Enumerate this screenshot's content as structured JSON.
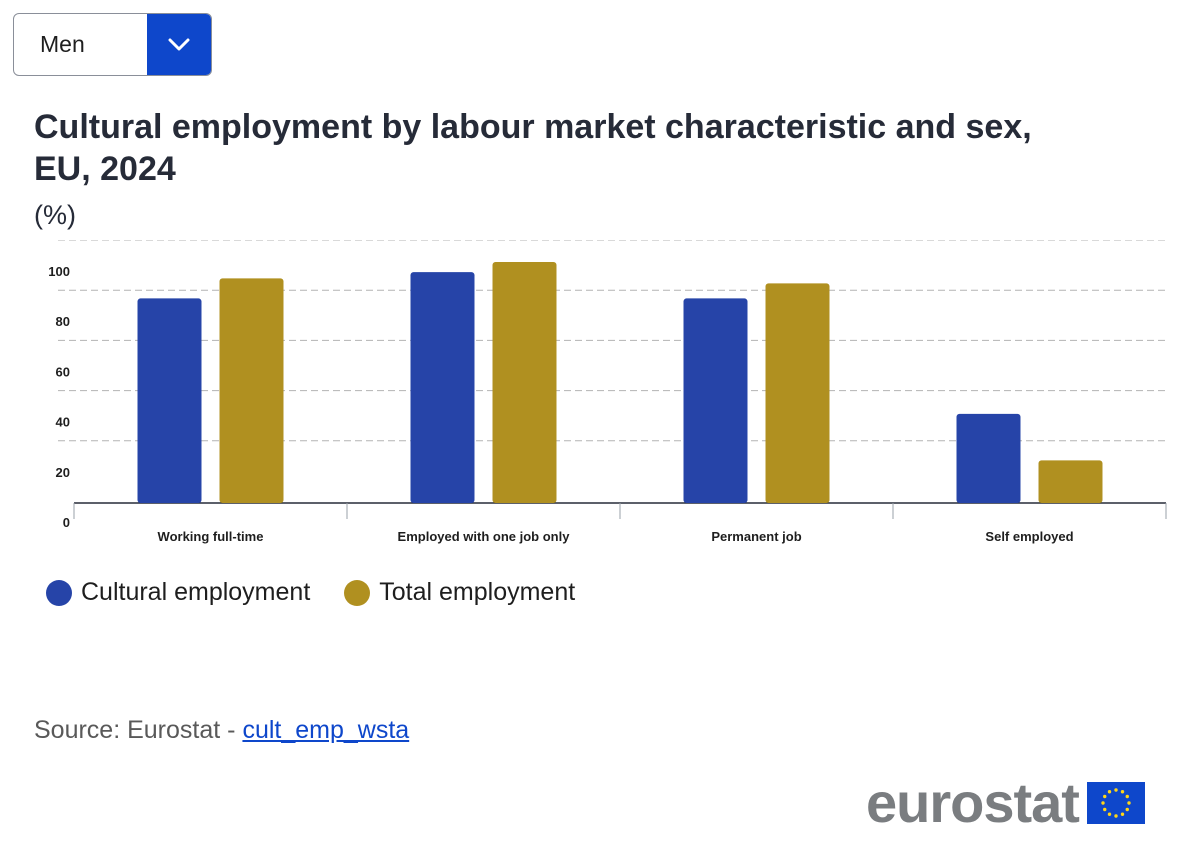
{
  "filter": {
    "selected": "Men"
  },
  "colors": {
    "cultural": "#2644a8",
    "total": "#b09020",
    "accent": "#0e47cb"
  },
  "source": {
    "prefix": "Source: Eurostat - ",
    "link_text": "cult_emp_wsta"
  },
  "logo": {
    "text": "eurostat",
    "icon": "eu-flag-icon"
  },
  "chart_data": {
    "type": "bar",
    "title": "Cultural employment by labour market characteristic and sex, EU, 2024",
    "unit": "(%)",
    "categories": [
      "Working full-time",
      "Employed with one job only",
      "Permanent job",
      "Self employed"
    ],
    "series": [
      {
        "name": "Cultural employment",
        "values": [
          81.5,
          92.0,
          81.5,
          35.5
        ]
      },
      {
        "name": "Total employment",
        "values": [
          89.5,
          96.0,
          87.5,
          17.0
        ]
      }
    ],
    "yticks": [
      0,
      20,
      40,
      60,
      80,
      100
    ],
    "ylim": [
      0,
      100
    ],
    "grid": true,
    "legend_position": "bottom-left"
  }
}
